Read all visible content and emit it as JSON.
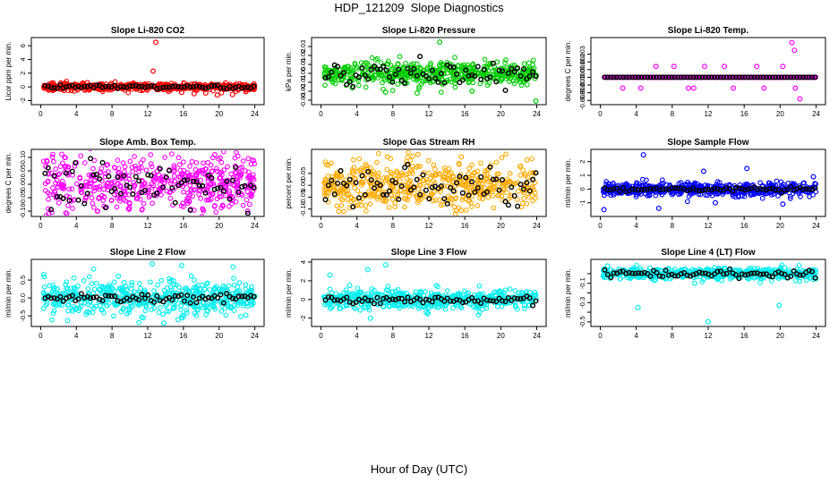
{
  "figure": {
    "title": "HDP_121209  Slope Diagnostics",
    "xlabel": "Hour of Day (UTC)"
  },
  "chart_data": [
    {
      "type": "scatter",
      "title": "Slope Li-820 CO2",
      "ylabel": "Licor ppm per min.",
      "xlim": [
        0,
        24
      ],
      "ylim": [
        -2.2,
        6.8
      ],
      "xticks": [
        0,
        4,
        8,
        12,
        16,
        20,
        24
      ],
      "yticks": [
        -2,
        0,
        2,
        4,
        6
      ],
      "ytick_labels": [
        "-2",
        "0",
        "2",
        "4",
        "6"
      ],
      "color": "#ff0000",
      "spread": 0.25,
      "black_spread": 0.15,
      "outliers": [
        [
          12.9,
          6.5
        ],
        [
          12.6,
          2.3
        ],
        [
          15.8,
          -0.8
        ],
        [
          17.2,
          -1.0
        ],
        [
          18.5,
          -0.9
        ],
        [
          21.5,
          -1.1
        ],
        [
          23.0,
          -0.7
        ],
        [
          19.8,
          -1.2
        ]
      ]
    },
    {
      "type": "scatter",
      "title": "Slope Li-820 Pressure",
      "ylabel": "kPa per min.",
      "xlim": [
        0,
        24
      ],
      "ylim": [
        -0.032,
        0.037
      ],
      "xticks": [
        0,
        4,
        8,
        12,
        16,
        20,
        24
      ],
      "yticks": [
        -0.03,
        -0.02,
        -0.01,
        0.0,
        0.01,
        0.02,
        0.03
      ],
      "ytick_labels": [
        "-0.03",
        "-0.02",
        "-0.01",
        "0.00",
        "0.01",
        "0.02",
        "0.03"
      ],
      "color": "#00cc00",
      "spread": 0.007,
      "black_spread": 0.006,
      "outliers": [
        [
          13.2,
          0.035
        ],
        [
          23.9,
          -0.031
        ],
        [
          10.7,
          -0.022
        ],
        [
          7.2,
          -0.021
        ],
        [
          16.8,
          -0.02
        ]
      ]
    },
    {
      "type": "scatter",
      "title": "Slope Li-820 Temp.",
      "ylabel": "degrees C per min.",
      "xlim": [
        0,
        24
      ],
      "ylim": [
        -0.0032,
        0.0048
      ],
      "xticks": [
        0,
        4,
        8,
        12,
        16,
        20,
        24
      ],
      "yticks": [
        -0.003,
        -0.002,
        -0.001,
        0.0,
        0.001,
        0.002,
        0.003
      ],
      "ytick_labels": [
        "-0.003",
        "-0.002",
        "-0.001",
        "0.000",
        "0.001",
        "0.002",
        "0.003"
      ],
      "color": "#ff00ff",
      "spread": 0.0,
      "black_spread": 0.0,
      "outliers": [
        [
          21.3,
          0.0045
        ],
        [
          21.6,
          0.0035
        ],
        [
          22.2,
          -0.0028
        ],
        [
          2.5,
          -0.0014
        ],
        [
          4.5,
          -0.0014
        ],
        [
          6.2,
          0.0014
        ],
        [
          9.8,
          -0.0014
        ],
        [
          10.4,
          -0.0014
        ],
        [
          11.6,
          0.0014
        ],
        [
          13.8,
          0.0014
        ],
        [
          14.8,
          -0.0014
        ],
        [
          17.4,
          0.0014
        ],
        [
          18.2,
          -0.0014
        ],
        [
          20.3,
          0.0014
        ],
        [
          21.7,
          -0.0014
        ],
        [
          8.2,
          0.0014
        ]
      ]
    },
    {
      "type": "scatter",
      "title": "Slope Amb. Box Temp.",
      "ylabel": "degrees C per min.",
      "xlim": [
        0,
        24
      ],
      "ylim": [
        -0.11,
        0.12
      ],
      "xticks": [
        0,
        4,
        8,
        12,
        16,
        20,
        24
      ],
      "yticks": [
        -0.1,
        -0.05,
        0.0,
        0.05,
        0.1
      ],
      "ytick_labels": [
        "-0.10",
        "-0.05",
        "0.00",
        "0.05",
        "0.10"
      ],
      "color": "#ff00ff",
      "spread": 0.05,
      "black_spread": 0.04,
      "outliers": [
        [
          23.2,
          -0.1
        ],
        [
          2.7,
          0.1
        ],
        [
          19.5,
          0.11
        ]
      ]
    },
    {
      "type": "scatter",
      "title": "Slope Gas Stream RH",
      "ylabel": "percent per min.",
      "xlim": [
        0,
        24
      ],
      "ylim": [
        -0.12,
        0.14
      ],
      "xticks": [
        0,
        4,
        8,
        12,
        16,
        20,
        24
      ],
      "yticks": [
        -0.1,
        -0.05,
        0.0,
        0.05
      ],
      "ytick_labels": [
        "-0.10",
        "-0.05",
        "0.00",
        "0.05"
      ],
      "color": "#ffaa00",
      "spread": 0.05,
      "black_spread": 0.04,
      "outliers": [
        [
          2.0,
          -0.11
        ],
        [
          15.6,
          0.12
        ],
        [
          10.8,
          0.13
        ]
      ]
    },
    {
      "type": "scatter",
      "title": "Slope Sample Flow",
      "ylabel": "ml/min per min.",
      "xlim": [
        0,
        24
      ],
      "ylim": [
        -1.8,
        2.7
      ],
      "xticks": [
        0,
        4,
        8,
        12,
        16,
        20,
        24
      ],
      "yticks": [
        -1,
        0,
        1,
        2
      ],
      "ytick_labels": [
        "-1",
        "0",
        "1",
        "2"
      ],
      "color": "#0000ff",
      "spread": 0.25,
      "black_spread": 0.08,
      "outliers": [
        [
          4.8,
          2.5
        ],
        [
          0.4,
          -1.5
        ],
        [
          6.5,
          -1.4
        ],
        [
          11.5,
          1.3
        ],
        [
          16.3,
          1.5
        ],
        [
          20.3,
          -1.1
        ],
        [
          12.8,
          -1.0
        ],
        [
          23.7,
          0.9
        ]
      ]
    },
    {
      "type": "scatter",
      "title": "Slope Line 2 Flow",
      "ylabel": "ml/min per min.",
      "xlim": [
        0,
        24
      ],
      "ylim": [
        -0.72,
        1.0
      ],
      "xticks": [
        0,
        4,
        8,
        12,
        16,
        20,
        24
      ],
      "yticks": [
        -0.5,
        0.0,
        0.5
      ],
      "ytick_labels": [
        "-0.5",
        "0.0",
        "0.5"
      ],
      "color": "#00eeee",
      "spread": 0.22,
      "black_spread": 0.06,
      "outliers": [
        [
          12.5,
          0.95
        ],
        [
          15.8,
          0.9
        ],
        [
          11.5,
          -0.55
        ],
        [
          15.4,
          -0.6
        ],
        [
          8.7,
          0.6
        ],
        [
          13.8,
          -0.7
        ]
      ]
    },
    {
      "type": "scatter",
      "title": "Slope Line 3 Flow",
      "ylabel": "ml/min per min.",
      "xlim": [
        0,
        24
      ],
      "ylim": [
        -2.6,
        4.0
      ],
      "xticks": [
        0,
        4,
        8,
        12,
        16,
        20,
        24
      ],
      "yticks": [
        -2,
        0,
        2,
        4
      ],
      "ytick_labels": [
        "-2",
        "0",
        "2",
        "4"
      ],
      "color": "#00eeee",
      "spread": 0.5,
      "black_spread": 0.2,
      "outliers": [
        [
          5.2,
          3.2
        ],
        [
          7.2,
          3.7
        ],
        [
          1.0,
          2.6
        ],
        [
          5.5,
          -2.0
        ],
        [
          3.2,
          1.5
        ]
      ]
    },
    {
      "type": "scatter",
      "title": "Slope Line 4 (LT) Flow",
      "ylabel": "ml/min per min.",
      "xlim": [
        0,
        24
      ],
      "ylim": [
        -0.52,
        0.12
      ],
      "xticks": [
        0,
        4,
        8,
        12,
        16,
        20,
        24
      ],
      "yticks": [
        -0.5,
        -0.4,
        -0.3,
        -0.2,
        -0.1,
        0.0
      ],
      "ytick_labels": [
        "-0.5",
        "",
        "-0.3",
        "",
        "-0.1",
        ""
      ],
      "color": "#00eeee",
      "spread": 0.03,
      "black_spread": 0.02,
      "outliers": [
        [
          4.2,
          -0.35
        ],
        [
          12.0,
          -0.5
        ],
        [
          19.9,
          -0.33
        ],
        [
          10.5,
          -0.1
        ],
        [
          0.8,
          0.08
        ]
      ]
    }
  ]
}
